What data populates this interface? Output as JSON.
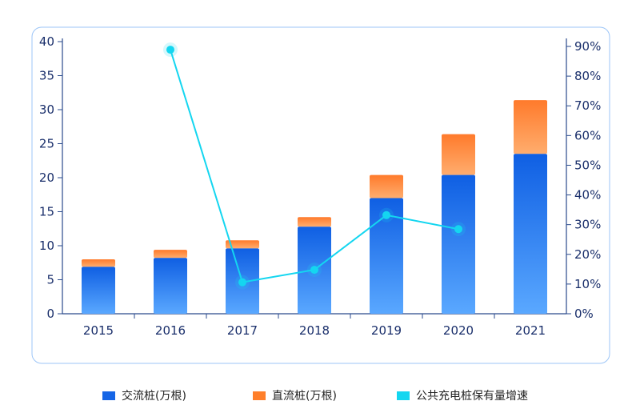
{
  "chart_data": {
    "type": "bar",
    "stacked": true,
    "categories": [
      "2015",
      "2016",
      "2017",
      "2018",
      "2019",
      "2020",
      "2021"
    ],
    "series": [
      {
        "name": "交流桩(万根)",
        "kind": "bar",
        "axis": "left",
        "color": "#1565e6",
        "values": [
          6.9,
          8.2,
          9.6,
          12.8,
          17.0,
          20.4,
          23.5
        ]
      },
      {
        "name": "直流桩(万根)",
        "kind": "bar",
        "axis": "left",
        "color": "#ff7f2a",
        "values": [
          1.1,
          1.2,
          1.2,
          1.4,
          3.4,
          6.0,
          7.9
        ]
      },
      {
        "name": "公共充电桩保有量增速",
        "kind": "line",
        "axis": "right",
        "color": "#14d6f0",
        "values": [
          null,
          88.9,
          10.6,
          14.8,
          33.2,
          28.5,
          null
        ]
      }
    ],
    "left_axis": {
      "ylim": [
        0,
        40
      ],
      "ticks": [
        "0",
        "5",
        "10",
        "15",
        "20",
        "25",
        "30",
        "35",
        "40"
      ]
    },
    "right_axis": {
      "ylim": [
        0,
        90
      ],
      "ticks": [
        "0%",
        "10%",
        "20%",
        "30%",
        "40%",
        "50%",
        "60%",
        "70%",
        "80%",
        "90%"
      ]
    },
    "legend_position": "bottom"
  },
  "legend": {
    "ac_label": "交流桩(万根)",
    "dc_label": "直流桩(万根)",
    "rate_label": "公共充电桩保有量增速"
  }
}
